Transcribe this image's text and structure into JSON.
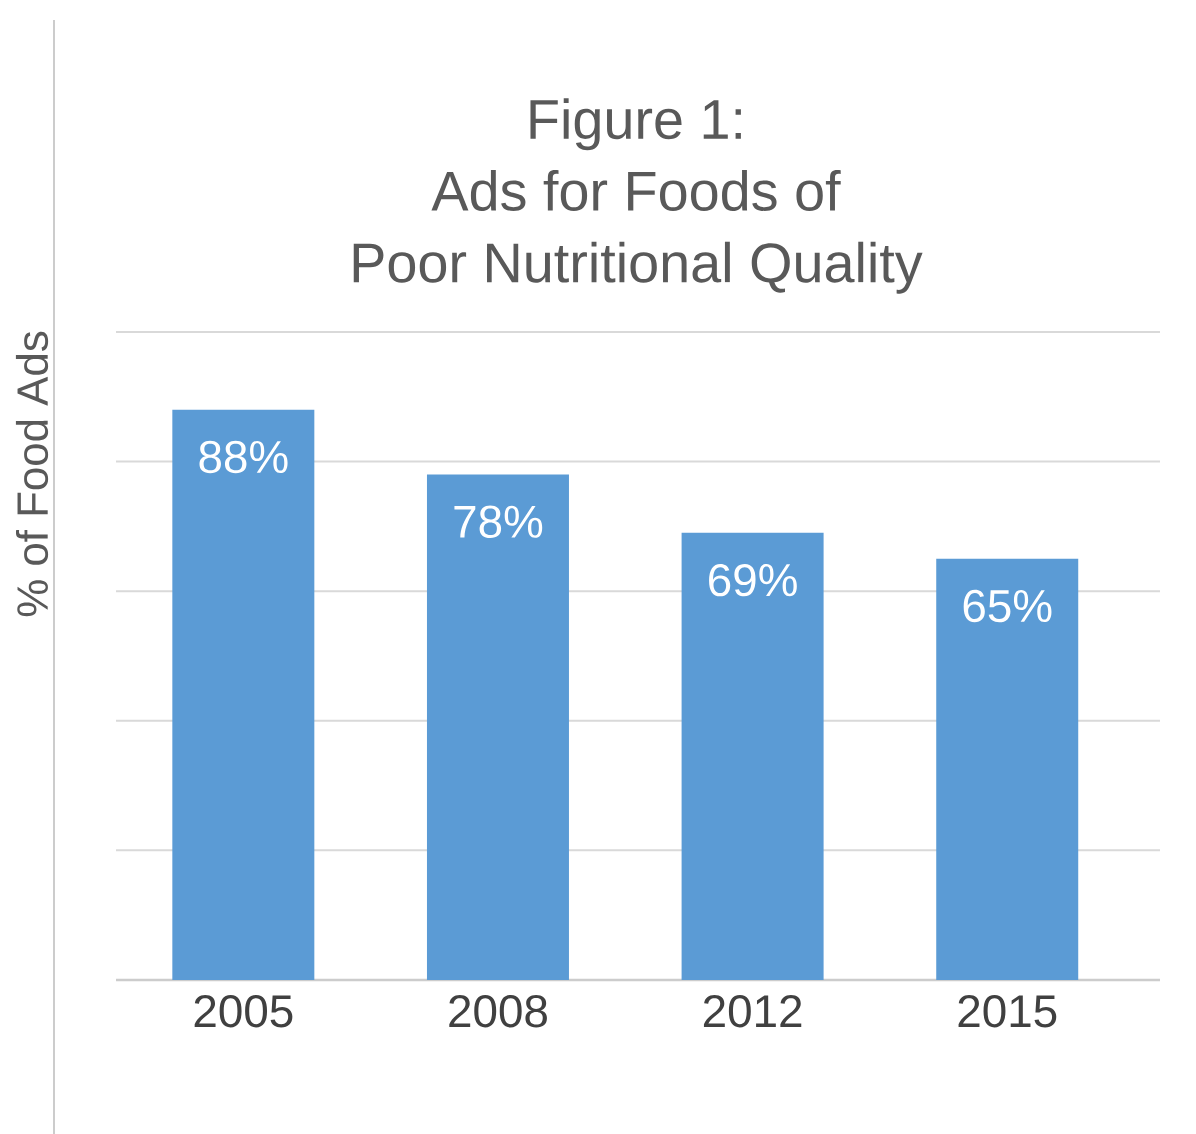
{
  "chart_data": {
    "type": "bar",
    "title": "Figure 1:\nAds for Foods of\nPoor Nutritional Quality",
    "ylabel": "% of Food Ads",
    "categories": [
      "2005",
      "2008",
      "2012",
      "2015"
    ],
    "values": [
      88,
      78,
      69,
      65
    ],
    "value_labels": [
      "88%",
      "78%",
      "69%",
      "65%"
    ],
    "color": "#5b9bd5",
    "ylim": [
      0,
      100
    ],
    "yticks": [
      {
        "value": 0,
        "label": null
      },
      {
        "value": 20,
        "label": null
      },
      {
        "value": 40,
        "label": null
      },
      {
        "value": 60,
        "label": null
      },
      {
        "value": 80,
        "label": null
      },
      {
        "value": 100,
        "label": null
      }
    ],
    "grid": "y",
    "tick_labels": "x"
  }
}
